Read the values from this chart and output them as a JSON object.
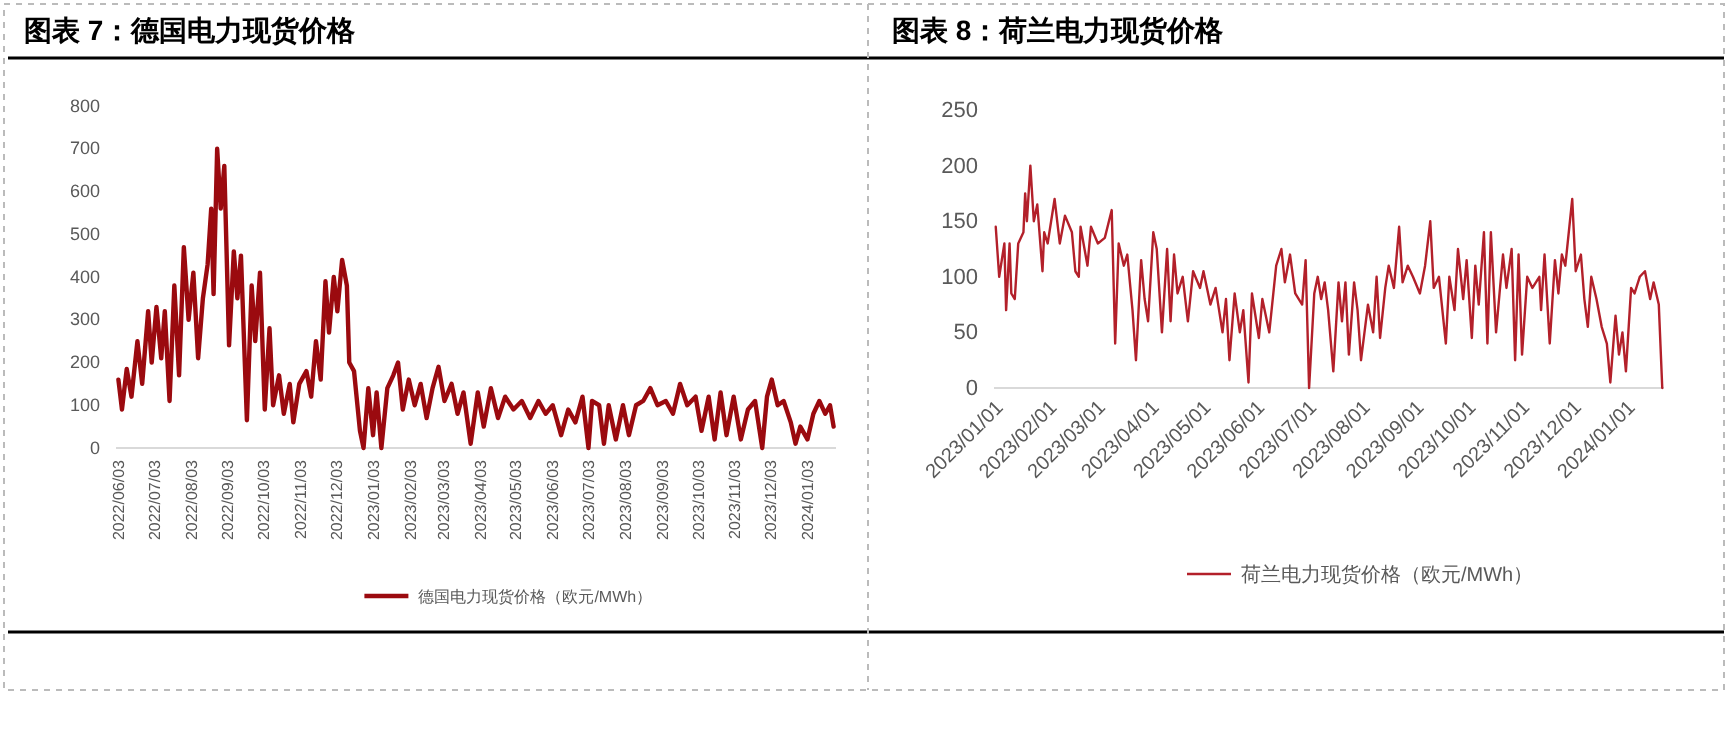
{
  "chart_data": [
    {
      "type": "line",
      "title": "图表 7：德国电力现货价格",
      "legend": "bottom",
      "line_style": "solid",
      "ylim": [
        0,
        800
      ],
      "yticks": [
        0,
        100,
        200,
        300,
        400,
        500,
        600,
        700,
        800
      ],
      "xlim": [
        "2022-06-01",
        "2024-01-27"
      ],
      "xticks": [
        {
          "value": "2022-06-03",
          "label": "2022/06/03"
        },
        {
          "value": "2022-07-03",
          "label": "2022/07/03"
        },
        {
          "value": "2022-08-03",
          "label": "2022/08/03"
        },
        {
          "value": "2022-09-03",
          "label": "2022/09/03"
        },
        {
          "value": "2022-10-03",
          "label": "2022/10/03"
        },
        {
          "value": "2022-11-03",
          "label": "2022/11/03"
        },
        {
          "value": "2022-12-03",
          "label": "2022/12/03"
        },
        {
          "value": "2023-01-03",
          "label": "2023/01/03"
        },
        {
          "value": "2023-02-03",
          "label": "2023/02/03"
        },
        {
          "value": "2023-03-03",
          "label": "2023/03/03"
        },
        {
          "value": "2023-04-03",
          "label": "2023/04/03"
        },
        {
          "value": "2023-05-03",
          "label": "2023/05/03"
        },
        {
          "value": "2023-06-03",
          "label": "2023/06/03"
        },
        {
          "value": "2023-07-03",
          "label": "2023/07/03"
        },
        {
          "value": "2023-08-03",
          "label": "2023/08/03"
        },
        {
          "value": "2023-09-03",
          "label": "2023/09/03"
        },
        {
          "value": "2023-10-03",
          "label": "2023/10/03"
        },
        {
          "value": "2023-11-03",
          "label": "2023/11/03"
        },
        {
          "value": "2023-12-03",
          "label": "2023/12/03"
        },
        {
          "value": "2024-01-03",
          "label": "2024/01/03"
        }
      ],
      "x": [
        "2022-06-03",
        "2022-06-06",
        "2022-06-10",
        "2022-06-14",
        "2022-06-19",
        "2022-06-23",
        "2022-06-28",
        "2022-07-01",
        "2022-07-05",
        "2022-07-09",
        "2022-07-12",
        "2022-07-16",
        "2022-07-20",
        "2022-07-24",
        "2022-07-28",
        "2022-08-01",
        "2022-08-05",
        "2022-08-09",
        "2022-08-13",
        "2022-08-17",
        "2022-08-20",
        "2022-08-22",
        "2022-08-25",
        "2022-08-28",
        "2022-08-31",
        "2022-09-04",
        "2022-09-08",
        "2022-09-11",
        "2022-09-14",
        "2022-09-19",
        "2022-09-23",
        "2022-09-26",
        "2022-09-30",
        "2022-10-04",
        "2022-10-08",
        "2022-10-11",
        "2022-10-16",
        "2022-10-20",
        "2022-10-25",
        "2022-10-28",
        "2022-11-02",
        "2022-11-08",
        "2022-11-12",
        "2022-11-16",
        "2022-11-20",
        "2022-11-24",
        "2022-11-27",
        "2022-12-01",
        "2022-12-04",
        "2022-12-08",
        "2022-12-12",
        "2022-12-14",
        "2022-12-18",
        "2022-12-23",
        "2022-12-26",
        "2022-12-30",
        "2023-01-03",
        "2023-01-06",
        "2023-01-10",
        "2023-01-15",
        "2023-01-20",
        "2023-01-24",
        "2023-01-28",
        "2023-02-02",
        "2023-02-07",
        "2023-02-12",
        "2023-02-17",
        "2023-02-22",
        "2023-02-27",
        "2023-03-04",
        "2023-03-10",
        "2023-03-15",
        "2023-03-20",
        "2023-03-26",
        "2023-04-01",
        "2023-04-06",
        "2023-04-12",
        "2023-04-18",
        "2023-04-24",
        "2023-05-01",
        "2023-05-08",
        "2023-05-15",
        "2023-05-22",
        "2023-05-28",
        "2023-06-03",
        "2023-06-10",
        "2023-06-16",
        "2023-06-22",
        "2023-06-28",
        "2023-07-03",
        "2023-07-06",
        "2023-07-12",
        "2023-07-16",
        "2023-07-20",
        "2023-07-26",
        "2023-08-01",
        "2023-08-06",
        "2023-08-12",
        "2023-08-18",
        "2023-08-24",
        "2023-08-30",
        "2023-09-06",
        "2023-09-12",
        "2023-09-18",
        "2023-09-24",
        "2023-10-01",
        "2023-10-06",
        "2023-10-12",
        "2023-10-17",
        "2023-10-22",
        "2023-10-27",
        "2023-11-02",
        "2023-11-08",
        "2023-11-14",
        "2023-11-20",
        "2023-11-26",
        "2023-11-30",
        "2023-12-04",
        "2023-12-09",
        "2023-12-14",
        "2023-12-20",
        "2023-12-24",
        "2023-12-28",
        "2024-01-03",
        "2024-01-08",
        "2024-01-13",
        "2024-01-18",
        "2024-01-22",
        "2024-01-25"
      ],
      "series": [
        {
          "name": "德国电力现货价格（欧元/MWh）",
          "color": "#9b0a0f",
          "values": [
            160,
            90,
            185,
            120,
            250,
            150,
            320,
            200,
            330,
            210,
            320,
            110,
            380,
            170,
            470,
            300,
            410,
            210,
            350,
            430,
            560,
            360,
            700,
            560,
            660,
            240,
            460,
            350,
            450,
            65,
            380,
            250,
            410,
            90,
            280,
            100,
            170,
            80,
            150,
            60,
            150,
            180,
            120,
            250,
            160,
            390,
            270,
            400,
            320,
            440,
            380,
            200,
            180,
            40,
            0,
            140,
            30,
            130,
            0,
            140,
            170,
            200,
            90,
            160,
            100,
            150,
            70,
            140,
            190,
            110,
            150,
            80,
            130,
            10,
            130,
            50,
            140,
            70,
            120,
            90,
            110,
            70,
            110,
            80,
            100,
            30,
            90,
            60,
            120,
            0,
            110,
            100,
            10,
            100,
            20,
            100,
            30,
            100,
            110,
            140,
            100,
            110,
            80,
            150,
            100,
            120,
            40,
            120,
            20,
            130,
            30,
            120,
            20,
            90,
            110,
            0,
            120,
            160,
            100,
            110,
            60,
            10,
            50,
            20,
            80,
            110,
            80,
            100,
            50
          ]
        }
      ]
    },
    {
      "type": "line",
      "title": "图表 8：荷兰电力现货价格",
      "legend": "bottom",
      "line_style": "solid",
      "ylim": [
        0,
        250
      ],
      "yticks": [
        0,
        50,
        100,
        150,
        200,
        250
      ],
      "xlim": [
        "2022-12-31",
        "2024-01-22"
      ],
      "xticks": [
        {
          "value": "2023-01-01",
          "label": "2023/01/01"
        },
        {
          "value": "2023-02-01",
          "label": "2023/02/01"
        },
        {
          "value": "2023-03-01",
          "label": "2023/03/01"
        },
        {
          "value": "2023-04-01",
          "label": "2023/04/01"
        },
        {
          "value": "2023-05-01",
          "label": "2023/05/01"
        },
        {
          "value": "2023-06-01",
          "label": "2023/06/01"
        },
        {
          "value": "2023-07-01",
          "label": "2023/07/01"
        },
        {
          "value": "2023-08-01",
          "label": "2023/08/01"
        },
        {
          "value": "2023-09-01",
          "label": "2023/09/01"
        },
        {
          "value": "2023-10-01",
          "label": "2023/10/01"
        },
        {
          "value": "2023-11-01",
          "label": "2023/11/01"
        },
        {
          "value": "2023-12-01",
          "label": "2023/12/01"
        },
        {
          "value": "2024-01-01",
          "label": "2024/01/01"
        }
      ],
      "x": [
        "2023-01-01",
        "2023-01-03",
        "2023-01-06",
        "2023-01-07",
        "2023-01-09",
        "2023-01-10",
        "2023-01-12",
        "2023-01-14",
        "2023-01-17",
        "2023-01-18",
        "2023-01-19",
        "2023-01-21",
        "2023-01-23",
        "2023-01-25",
        "2023-01-28",
        "2023-01-29",
        "2023-01-31",
        "2023-02-04",
        "2023-02-07",
        "2023-02-10",
        "2023-02-14",
        "2023-02-16",
        "2023-02-18",
        "2023-02-19",
        "2023-02-23",
        "2023-02-25",
        "2023-03-01",
        "2023-03-05",
        "2023-03-09",
        "2023-03-11",
        "2023-03-13",
        "2023-03-16",
        "2023-03-18",
        "2023-03-21",
        "2023-03-23",
        "2023-03-26",
        "2023-03-28",
        "2023-03-30",
        "2023-04-02",
        "2023-04-04",
        "2023-04-07",
        "2023-04-10",
        "2023-04-12",
        "2023-04-14",
        "2023-04-16",
        "2023-04-19",
        "2023-04-22",
        "2023-04-25",
        "2023-04-29",
        "2023-05-01",
        "2023-05-05",
        "2023-05-08",
        "2023-05-12",
        "2023-05-14",
        "2023-05-16",
        "2023-05-19",
        "2023-05-22",
        "2023-05-24",
        "2023-05-27",
        "2023-05-29",
        "2023-06-02",
        "2023-06-04",
        "2023-06-08",
        "2023-06-12",
        "2023-06-15",
        "2023-06-17",
        "2023-06-20",
        "2023-06-23",
        "2023-06-27",
        "2023-06-29",
        "2023-07-01",
        "2023-07-04",
        "2023-07-06",
        "2023-07-08",
        "2023-07-10",
        "2023-07-12",
        "2023-07-15",
        "2023-07-18",
        "2023-07-20",
        "2023-07-22",
        "2023-07-24",
        "2023-07-27",
        "2023-07-29",
        "2023-07-31",
        "2023-08-04",
        "2023-08-07",
        "2023-08-09",
        "2023-08-11",
        "2023-08-14",
        "2023-08-16",
        "2023-08-19",
        "2023-08-22",
        "2023-08-24",
        "2023-08-27",
        "2023-08-30",
        "2023-09-03",
        "2023-09-06",
        "2023-09-09",
        "2023-09-11",
        "2023-09-14",
        "2023-09-18",
        "2023-09-20",
        "2023-09-23",
        "2023-09-25",
        "2023-09-28",
        "2023-09-30",
        "2023-10-03",
        "2023-10-05",
        "2023-10-07",
        "2023-10-10",
        "2023-10-12",
        "2023-10-14",
        "2023-10-17",
        "2023-10-21",
        "2023-10-23",
        "2023-10-26",
        "2023-10-28",
        "2023-10-30",
        "2023-11-01",
        "2023-11-04",
        "2023-11-07",
        "2023-11-11",
        "2023-11-12",
        "2023-11-14",
        "2023-11-17",
        "2023-11-20",
        "2023-11-22",
        "2023-11-24",
        "2023-11-26",
        "2023-11-30",
        "2023-12-02",
        "2023-12-05",
        "2023-12-07",
        "2023-12-09",
        "2023-12-11",
        "2023-12-14",
        "2023-12-17",
        "2023-12-20",
        "2023-12-22",
        "2023-12-25",
        "2023-12-27",
        "2023-12-29",
        "2023-12-31",
        "2024-01-03",
        "2024-01-05",
        "2024-01-08",
        "2024-01-11",
        "2024-01-14",
        "2024-01-16",
        "2024-01-19",
        "2024-01-21"
      ],
      "series": [
        {
          "name": "荷兰电力现货价格（欧元/MWh）",
          "color": "#b3202a",
          "values": [
            145,
            100,
            130,
            70,
            130,
            85,
            80,
            130,
            140,
            175,
            150,
            200,
            150,
            165,
            105,
            140,
            130,
            170,
            130,
            155,
            140,
            105,
            100,
            145,
            110,
            145,
            130,
            135,
            160,
            40,
            130,
            110,
            120,
            70,
            25,
            115,
            80,
            60,
            140,
            125,
            50,
            125,
            60,
            120,
            85,
            100,
            60,
            105,
            90,
            105,
            75,
            90,
            50,
            80,
            25,
            85,
            50,
            70,
            5,
            85,
            45,
            80,
            50,
            110,
            125,
            95,
            120,
            85,
            75,
            115,
            0,
            85,
            100,
            80,
            95,
            70,
            15,
            95,
            60,
            95,
            30,
            95,
            70,
            25,
            75,
            50,
            100,
            45,
            90,
            110,
            90,
            145,
            95,
            110,
            100,
            85,
            110,
            150,
            90,
            100,
            40,
            100,
            70,
            125,
            80,
            115,
            45,
            110,
            75,
            140,
            40,
            140,
            50,
            120,
            90,
            125,
            25,
            120,
            30,
            100,
            90,
            100,
            70,
            120,
            40,
            115,
            85,
            120,
            110,
            170,
            105,
            120,
            80,
            55,
            100,
            80,
            55,
            40,
            5,
            65,
            30,
            50,
            15,
            90,
            85,
            100,
            105,
            80,
            95,
            75,
            0
          ]
        }
      ]
    }
  ]
}
